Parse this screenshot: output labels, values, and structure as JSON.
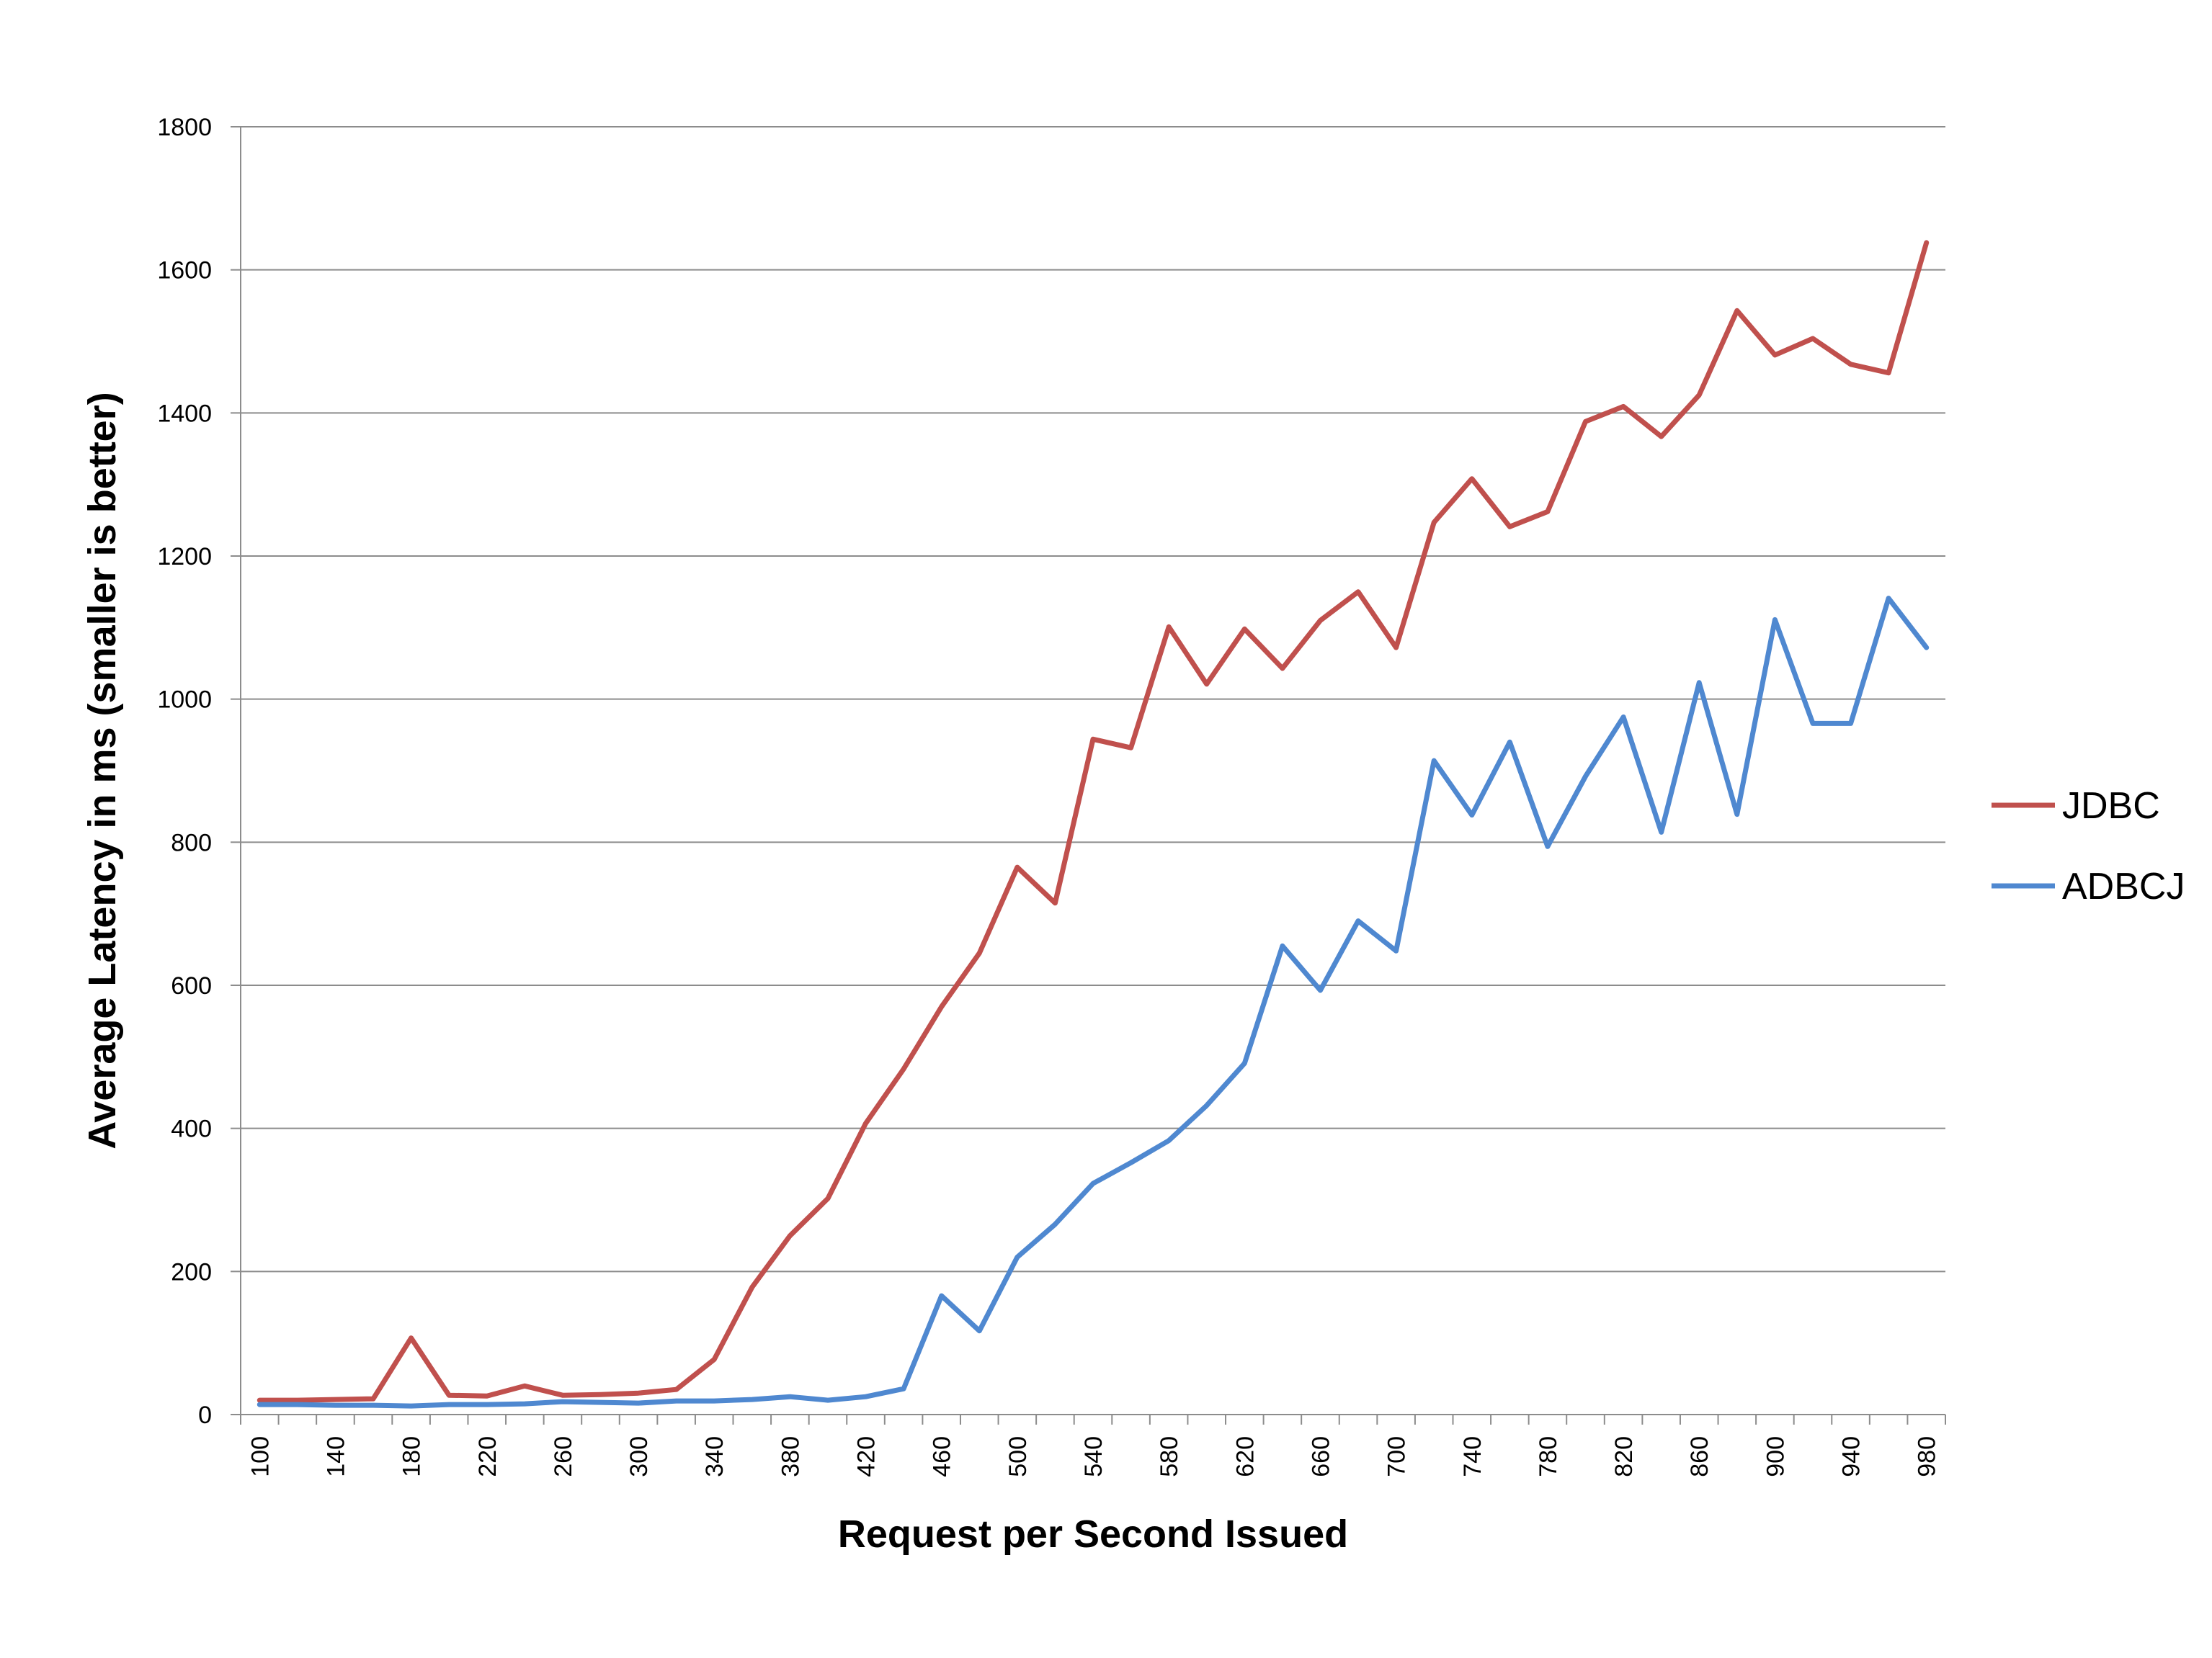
{
  "chart_data": {
    "type": "line",
    "title": "",
    "xlabel": "Request per Second Issued",
    "ylabel": "Average Latency in ms (smaller is better)",
    "ylim": [
      0,
      1800
    ],
    "yticks": [
      0,
      200,
      400,
      600,
      800,
      1000,
      1200,
      1400,
      1600,
      1800
    ],
    "x": [
      100,
      120,
      140,
      160,
      180,
      200,
      220,
      240,
      260,
      280,
      300,
      320,
      340,
      360,
      380,
      400,
      420,
      440,
      460,
      480,
      500,
      520,
      540,
      560,
      580,
      600,
      620,
      640,
      660,
      680,
      700,
      720,
      740,
      760,
      780,
      800,
      820,
      840,
      860,
      880,
      900,
      920,
      940,
      960,
      980
    ],
    "xtick_labels": [
      "100",
      "140",
      "180",
      "220",
      "260",
      "300",
      "340",
      "380",
      "420",
      "460",
      "500",
      "540",
      "580",
      "620",
      "660",
      "700",
      "740",
      "780",
      "820",
      "860",
      "900",
      "940",
      "980"
    ],
    "grid": "horizontal",
    "legend_position": "right",
    "series": [
      {
        "name": "JDBC",
        "color": "#c0504d",
        "values": [
          20,
          20,
          21,
          22,
          107,
          27,
          26,
          40,
          27,
          28,
          30,
          35,
          77,
          178,
          250,
          302,
          407,
          483,
          570,
          645,
          765,
          715,
          944,
          932,
          1101,
          1021,
          1098,
          1043,
          1110,
          1150,
          1072,
          1247,
          1308,
          1241,
          1262,
          1388,
          1409,
          1367,
          1425,
          1543,
          1481,
          1504,
          1468,
          1456,
          1638
        ]
      },
      {
        "name": "ADBCJ",
        "color": "#4f88d0",
        "values": [
          14,
          14,
          13,
          13,
          12,
          14,
          14,
          15,
          18,
          17,
          16,
          19,
          19,
          21,
          25,
          20,
          25,
          36,
          166,
          117,
          220,
          266,
          323,
          352,
          383,
          432,
          491,
          655,
          593,
          690,
          648,
          914,
          838,
          940,
          794,
          892,
          975,
          814,
          1023,
          839,
          1111,
          966,
          966,
          1141,
          1072
        ]
      }
    ]
  }
}
